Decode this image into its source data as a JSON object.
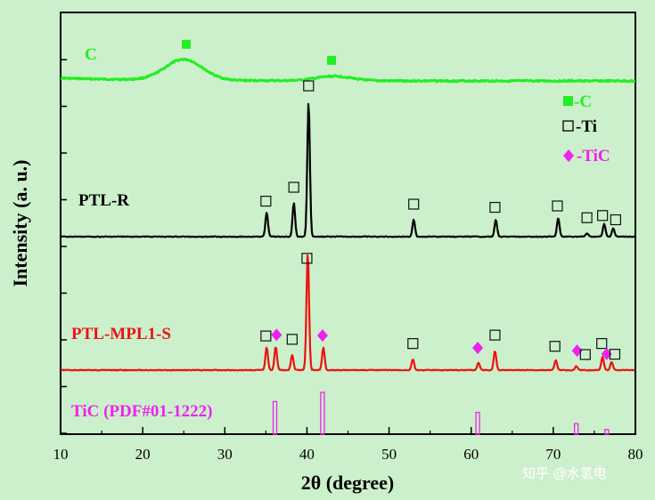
{
  "chart_data": {
    "type": "line",
    "xlabel": "2θ (degree)",
    "ylabel": "Intensity (a. u.)",
    "xlim": [
      10,
      80
    ],
    "xticks": [
      10,
      20,
      30,
      40,
      50,
      60,
      70,
      80
    ],
    "grid": false,
    "legend_placement": "top-right",
    "series": [
      {
        "name": "C",
        "color": "#22ee22",
        "kind": "amorphous",
        "baseline": 0.94,
        "broad_peaks": [
          {
            "center": 25.0,
            "height": 0.45,
            "width": 3.2
          },
          {
            "center": 43.3,
            "height": 0.1,
            "width": 3.0
          }
        ],
        "peaks": [],
        "markers": [
          {
            "x": 25.3,
            "symbol": "filled-square",
            "color": "#22ee22"
          },
          {
            "x": 43.0,
            "symbol": "filled-square",
            "color": "#22ee22"
          }
        ]
      },
      {
        "name": "PTL-R",
        "color": "#000000",
        "kind": "crystalline",
        "baseline": 0.0,
        "peaks": [
          {
            "x": 35.1,
            "h": 0.29
          },
          {
            "x": 38.4,
            "h": 0.4
          },
          {
            "x": 40.2,
            "h": 1.6
          },
          {
            "x": 53.0,
            "h": 0.2
          },
          {
            "x": 63.0,
            "h": 0.2
          },
          {
            "x": 70.6,
            "h": 0.22
          },
          {
            "x": 74.1,
            "h": 0.04
          },
          {
            "x": 76.2,
            "h": 0.15
          },
          {
            "x": 77.3,
            "h": 0.1
          }
        ],
        "markers": [
          {
            "x": 35.0,
            "symbol": "open-square"
          },
          {
            "x": 38.4,
            "symbol": "open-square"
          },
          {
            "x": 40.2,
            "symbol": "open-square"
          },
          {
            "x": 53.0,
            "symbol": "open-square"
          },
          {
            "x": 62.9,
            "symbol": "open-square"
          },
          {
            "x": 70.5,
            "symbol": "open-square"
          },
          {
            "x": 74.1,
            "symbol": "open-square"
          },
          {
            "x": 76.0,
            "symbol": "open-square"
          },
          {
            "x": 77.6,
            "symbol": "open-square"
          }
        ]
      },
      {
        "name": "PTL-MPL1-S",
        "color": "#ee1111",
        "kind": "crystalline",
        "baseline": 0.0,
        "peaks": [
          {
            "x": 35.1,
            "h": 0.27
          },
          {
            "x": 36.2,
            "h": 0.28
          },
          {
            "x": 38.2,
            "h": 0.18
          },
          {
            "x": 40.1,
            "h": 1.4
          },
          {
            "x": 42.0,
            "h": 0.27
          },
          {
            "x": 52.9,
            "h": 0.13
          },
          {
            "x": 60.9,
            "h": 0.09
          },
          {
            "x": 62.9,
            "h": 0.23
          },
          {
            "x": 70.3,
            "h": 0.12
          },
          {
            "x": 72.8,
            "h": 0.05
          },
          {
            "x": 76.0,
            "h": 0.16
          },
          {
            "x": 77.1,
            "h": 0.1
          }
        ],
        "markers": [
          {
            "x": 35.0,
            "symbol": "open-square"
          },
          {
            "x": 36.3,
            "symbol": "diamond"
          },
          {
            "x": 38.2,
            "symbol": "open-square"
          },
          {
            "x": 40.0,
            "symbol": "open-square"
          },
          {
            "x": 41.9,
            "symbol": "diamond"
          },
          {
            "x": 52.9,
            "symbol": "open-square"
          },
          {
            "x": 60.8,
            "symbol": "diamond"
          },
          {
            "x": 62.9,
            "symbol": "open-square"
          },
          {
            "x": 70.2,
            "symbol": "open-square"
          },
          {
            "x": 72.9,
            "symbol": "diamond"
          },
          {
            "x": 73.9,
            "symbol": "open-square"
          },
          {
            "x": 75.9,
            "symbol": "open-square"
          },
          {
            "x": 76.5,
            "symbol": "diamond"
          },
          {
            "x": 77.5,
            "symbol": "open-square"
          }
        ]
      }
    ],
    "reference": {
      "name": "TiC (PDF#01-1222)",
      "color": "#ee22ee",
      "bars": [
        {
          "x": 36.1,
          "rel": 0.78
        },
        {
          "x": 41.9,
          "rel": 1.0
        },
        {
          "x": 60.8,
          "rel": 0.52
        },
        {
          "x": 72.8,
          "rel": 0.25
        },
        {
          "x": 76.5,
          "rel": 0.11
        }
      ]
    },
    "legend": [
      {
        "symbol": "filled-square",
        "color": "#22ee22",
        "text": "-C"
      },
      {
        "symbol": "open-square",
        "color": "#000000",
        "text": "-Ti"
      },
      {
        "symbol": "diamond",
        "color": "#ee22ee",
        "text": "-TiC"
      }
    ]
  },
  "watermark": "知乎 @水氢电"
}
